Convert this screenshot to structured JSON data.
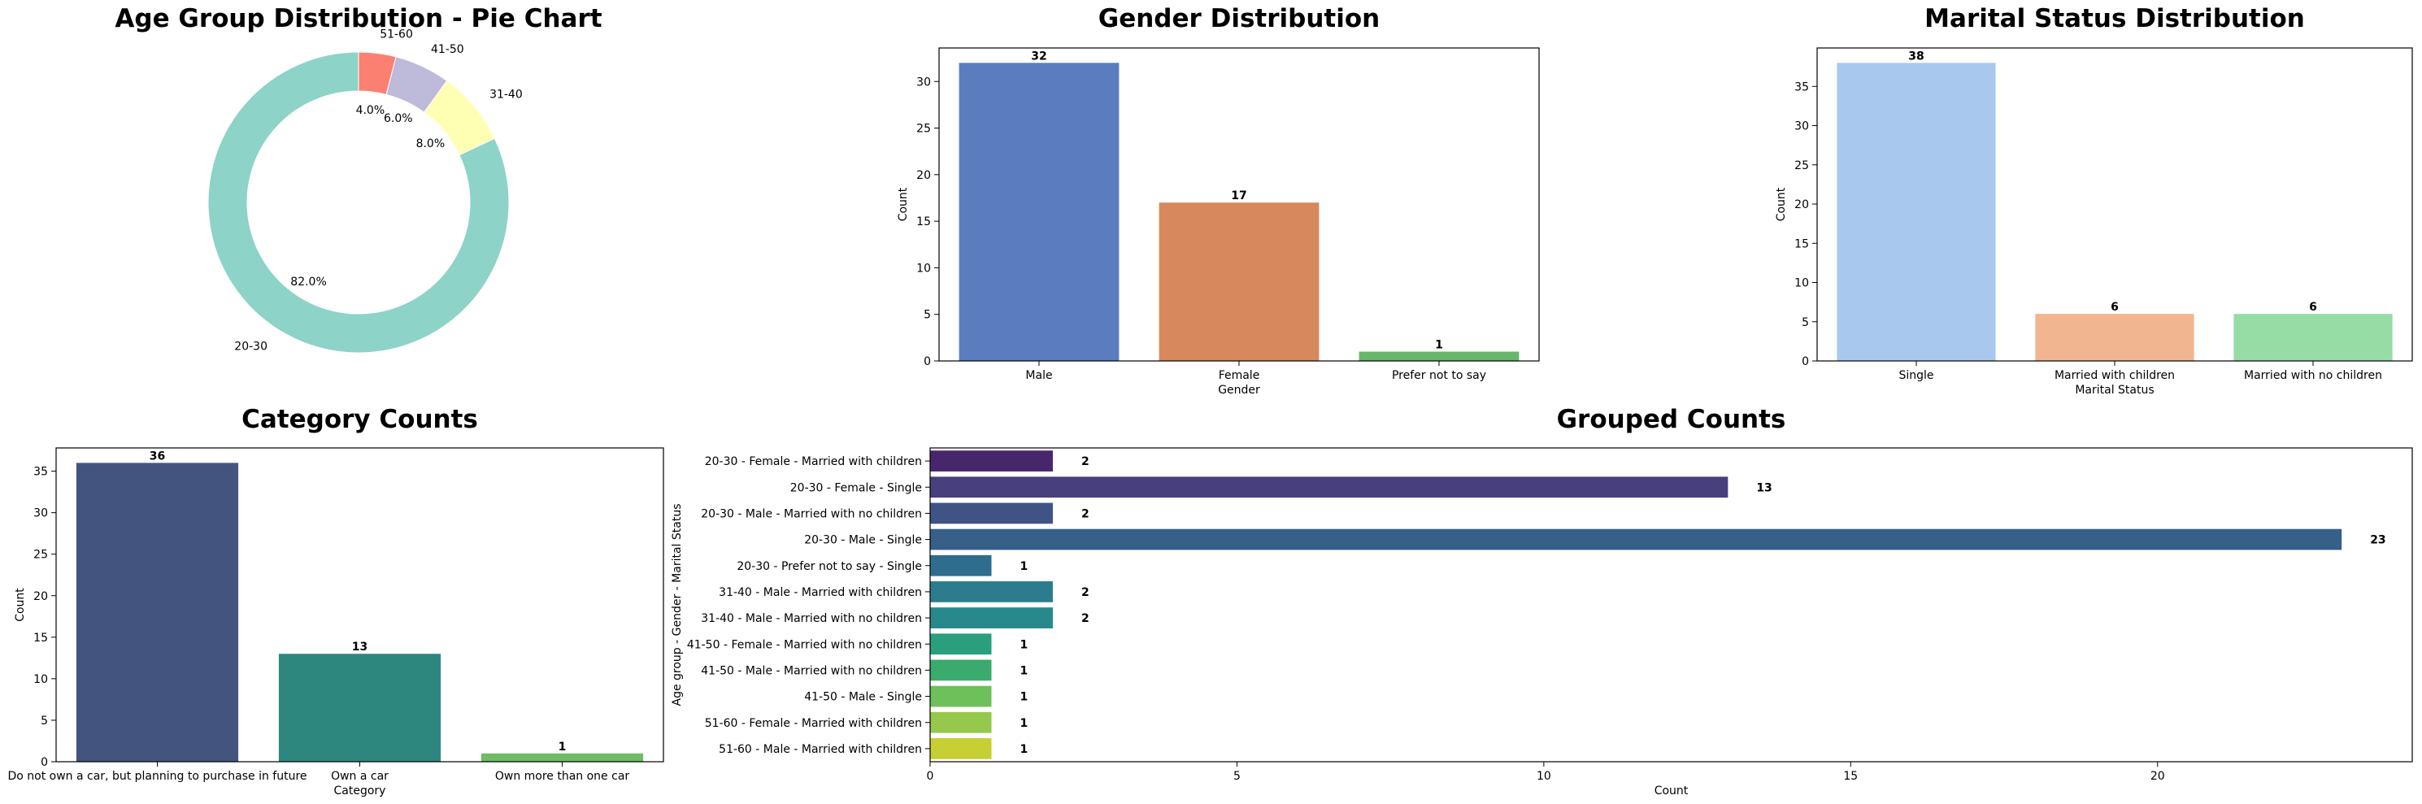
{
  "chart_data": [
    {
      "id": "age",
      "type": "pie",
      "title": "Age Group Distribution - Pie Chart",
      "donut": true,
      "slices": [
        {
          "label": "20-30",
          "percent": 82.0,
          "pct_label": "82.0%",
          "color": "#8dd3c7"
        },
        {
          "label": "31-40",
          "percent": 8.0,
          "pct_label": "8.0%",
          "color": "#ffffb3"
        },
        {
          "label": "41-50",
          "percent": 6.0,
          "pct_label": "6.0%",
          "color": "#bebada"
        },
        {
          "label": "51-60",
          "percent": 4.0,
          "pct_label": "4.0%",
          "color": "#fb8072"
        }
      ]
    },
    {
      "id": "gender",
      "type": "bar",
      "title": "Gender Distribution",
      "xlabel": "Gender",
      "ylabel": "Count",
      "categories": [
        "Male",
        "Female",
        "Prefer not to say"
      ],
      "values": [
        32,
        17,
        1
      ],
      "colors": [
        "#5a7dbf",
        "#d7895d",
        "#67b66c"
      ],
      "ylim": [
        0,
        33.6
      ],
      "yticks": [
        0,
        5,
        10,
        15,
        20,
        25,
        30
      ]
    },
    {
      "id": "marital",
      "type": "bar",
      "title": "Marital Status Distribution",
      "xlabel": "Marital Status",
      "ylabel": "Count",
      "categories": [
        "Single",
        "Married with children",
        "Married with no children"
      ],
      "values": [
        38,
        6,
        6
      ],
      "colors": [
        "#a9c8ee",
        "#f1b690",
        "#96dca5"
      ],
      "ylim": [
        0,
        39.9
      ],
      "yticks": [
        0,
        5,
        10,
        15,
        20,
        25,
        30,
        35
      ]
    },
    {
      "id": "category",
      "type": "bar",
      "title": "Category Counts",
      "xlabel": "Category",
      "ylabel": "Count",
      "categories": [
        "Do not own a car, but planning to purchase in future",
        "Own a car",
        "Own more than one car"
      ],
      "values": [
        36,
        13,
        1
      ],
      "colors": [
        "#43557f",
        "#2e877f",
        "#6cbd63"
      ],
      "ylim": [
        0,
        37.8
      ],
      "yticks": [
        0,
        5,
        10,
        15,
        20,
        25,
        30,
        35
      ]
    },
    {
      "id": "grouped",
      "type": "bar",
      "orientation": "horizontal",
      "title": "Grouped Counts",
      "xlabel": "Count",
      "ylabel": "Age group - Gender - Marital Status",
      "categories": [
        "20-30 - Female - Married with children",
        "20-30 - Female - Single",
        "20-30 - Male - Married with no children",
        "20-30 - Male - Single",
        "20-30 - Prefer not to say - Single",
        "31-40 - Male - Married with children",
        "31-40 - Male - Married with no children",
        "41-50 - Female - Married with no children",
        "41-50 - Male - Married with no children",
        "41-50 - Male - Single",
        "51-60 - Female - Married with children",
        "51-60 - Male - Married with children"
      ],
      "values": [
        2,
        13,
        2,
        23,
        1,
        2,
        2,
        1,
        1,
        1,
        1,
        1
      ],
      "colors": [
        "#48266b",
        "#473f7e",
        "#3f5485",
        "#365f8a",
        "#2e6d8e",
        "#2b7d8e",
        "#27898b",
        "#2a9f7d",
        "#3aab6c",
        "#6ec05a",
        "#95c84d",
        "#c6cf33"
      ],
      "xlim": [
        0,
        24.15
      ],
      "xticks": [
        0,
        5,
        10,
        15,
        20
      ]
    }
  ]
}
